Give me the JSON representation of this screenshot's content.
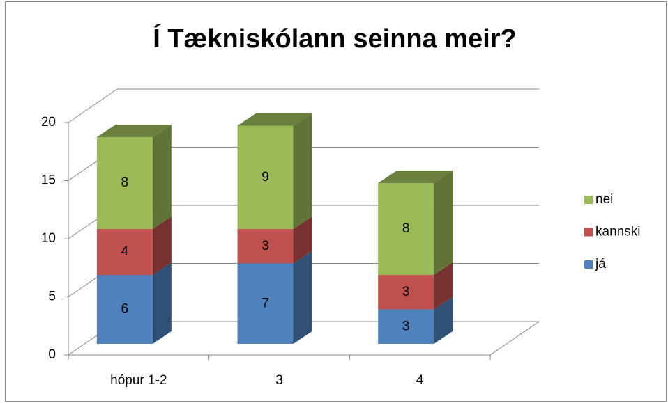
{
  "chart_data": {
    "type": "bar",
    "stacked": true,
    "three_d": true,
    "title": "Í Tækniskólann seinna meir?",
    "categories": [
      "hópur 1-2",
      "3",
      "4"
    ],
    "series": [
      {
        "name": "já",
        "color": "#4f81bd",
        "values": [
          6,
          7,
          3
        ]
      },
      {
        "name": "kannski",
        "color": "#c0504d",
        "values": [
          4,
          3,
          3
        ]
      },
      {
        "name": "nei",
        "color": "#9bbb59",
        "values": [
          8,
          9,
          8
        ]
      }
    ],
    "ylim": [
      0,
      20
    ],
    "yticks": [
      0,
      5,
      10,
      15,
      20
    ],
    "grid": true,
    "legend": "right"
  }
}
